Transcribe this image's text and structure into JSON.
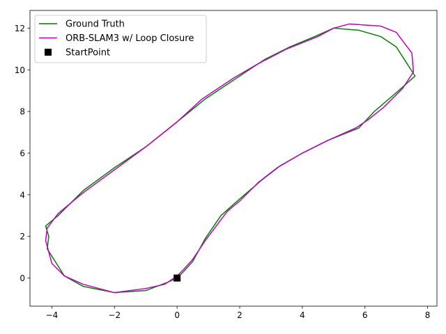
{
  "chart_data": {
    "type": "line",
    "title": "",
    "xlabel": "",
    "ylabel": "",
    "xlim": [
      -4.7,
      8.3
    ],
    "ylim": [
      -1.35,
      12.85
    ],
    "xticks": [
      -4,
      -2,
      0,
      2,
      4,
      6,
      8
    ],
    "yticks": [
      0,
      2,
      4,
      6,
      8,
      10,
      12
    ],
    "grid": false,
    "legend_position": "top-left",
    "series": [
      {
        "name": "Ground Truth",
        "color": "#008000",
        "x": [
          0.0,
          0.2,
          0.5,
          0.9,
          1.4,
          2.0,
          2.7,
          3.3,
          4.0,
          4.8,
          5.8,
          6.3,
          7.0,
          7.6,
          7.3,
          7.0,
          6.5,
          5.8,
          5.0,
          4.4,
          3.6,
          2.8,
          1.9,
          0.9,
          0.0,
          -1.0,
          -2.0,
          -3.0,
          -3.8,
          -4.2,
          -4.1,
          -4.15,
          -3.6,
          -3.0,
          -2.0,
          -1.0,
          -0.3,
          0.0
        ],
        "y": [
          0.0,
          0.3,
          0.8,
          1.9,
          3.0,
          3.8,
          4.7,
          5.4,
          6.0,
          6.6,
          7.2,
          8.0,
          8.9,
          9.7,
          10.4,
          11.1,
          11.6,
          11.9,
          12.0,
          11.6,
          11.1,
          10.5,
          9.6,
          8.6,
          7.5,
          6.3,
          5.3,
          4.2,
          3.0,
          2.5,
          2.0,
          1.4,
          0.1,
          -0.4,
          -0.7,
          -0.6,
          -0.2,
          0.0
        ]
      },
      {
        "name": "ORB-SLAM3 w/ Loop Closure",
        "color": "#bf00bf",
        "x": [
          0.0,
          0.2,
          0.5,
          0.9,
          1.3,
          1.6,
          2.0,
          2.6,
          3.2,
          4.0,
          4.8,
          5.7,
          6.1,
          6.6,
          7.2,
          7.55,
          7.5,
          7.0,
          6.5,
          5.5,
          5.0,
          4.5,
          3.5,
          2.6,
          1.8,
          0.8,
          0.0,
          -1.0,
          -2.0,
          -3.0,
          -3.8,
          -4.15,
          -4.2,
          -4.0,
          -3.6,
          -3.0,
          -2.0,
          -1.0,
          -0.4,
          0.0
        ],
        "y": [
          0.1,
          0.4,
          0.9,
          1.8,
          2.6,
          3.2,
          3.7,
          4.6,
          5.3,
          6.0,
          6.6,
          7.2,
          7.6,
          8.2,
          9.1,
          9.9,
          10.8,
          11.8,
          12.1,
          12.2,
          12.0,
          11.6,
          11.0,
          10.3,
          9.6,
          8.6,
          7.5,
          6.3,
          5.2,
          4.1,
          3.1,
          2.4,
          1.8,
          0.7,
          0.1,
          -0.3,
          -0.7,
          -0.5,
          -0.3,
          0.1
        ]
      },
      {
        "name": "StartPoint",
        "color": "#000000",
        "marker": "square",
        "x": [
          0.0
        ],
        "y": [
          0.0
        ]
      }
    ]
  }
}
